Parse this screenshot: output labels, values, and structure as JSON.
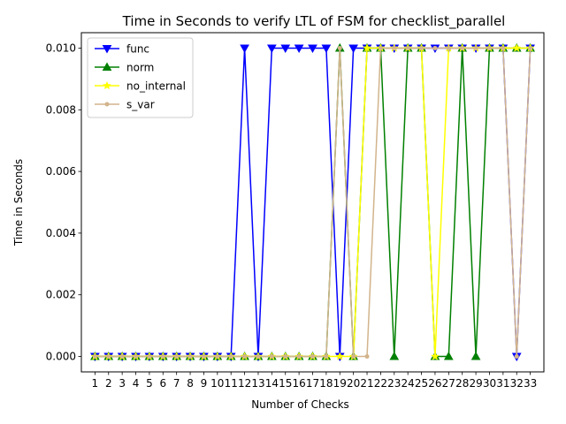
{
  "chart_data": {
    "type": "line",
    "title": "Time in Seconds to verify LTL of FSM for checklist_parallel",
    "xlabel": "Number of Checks",
    "ylabel": "Time in Seconds",
    "x": [
      1,
      2,
      3,
      4,
      5,
      6,
      7,
      8,
      9,
      10,
      11,
      12,
      13,
      14,
      15,
      16,
      17,
      18,
      19,
      20,
      21,
      22,
      23,
      24,
      25,
      26,
      27,
      28,
      29,
      30,
      31,
      32,
      33
    ],
    "xlim": [
      0,
      34
    ],
    "ylim": [
      -0.0005,
      0.0105
    ],
    "yticks": [
      0.0,
      0.002,
      0.004,
      0.006,
      0.008,
      0.01
    ],
    "ytick_labels": [
      "0.000",
      "0.002",
      "0.004",
      "0.006",
      "0.008",
      "0.010"
    ],
    "grid": false,
    "legend_position": "top-left",
    "series": [
      {
        "name": "func",
        "color": "#0000ff",
        "marker": "triangle-down",
        "values": [
          0,
          0,
          0,
          0,
          0,
          0,
          0,
          0,
          0,
          0,
          0,
          0.01,
          0,
          0.01,
          0.01,
          0.01,
          0.01,
          0.01,
          0,
          0.01,
          0.01,
          0.01,
          0.01,
          0.01,
          0.01,
          0.01,
          0.01,
          0.01,
          0.01,
          0.01,
          0.01,
          0,
          0.01
        ]
      },
      {
        "name": "norm",
        "color": "#008000",
        "marker": "triangle-up",
        "values": [
          0,
          0,
          0,
          0,
          0,
          0,
          0,
          0,
          0,
          0,
          0,
          0,
          0,
          0,
          0,
          0,
          0,
          0,
          0.01,
          0,
          0.01,
          0.01,
          0,
          0.01,
          0.01,
          0,
          0,
          0.01,
          0,
          0.01,
          0.01,
          0.01,
          0.01
        ]
      },
      {
        "name": "no_internal",
        "color": "#ffff00",
        "marker": "star",
        "values": [
          0,
          0,
          0,
          0,
          0,
          0,
          0,
          0,
          0,
          0,
          0,
          0,
          0,
          0,
          0,
          0,
          0,
          0,
          0,
          0,
          0.01,
          0.01,
          0.01,
          0.01,
          0.01,
          0,
          0.01,
          0.01,
          0.01,
          0.01,
          0.01,
          0.01,
          0.01
        ]
      },
      {
        "name": "s_var",
        "color": "#d2b48c",
        "marker": "point",
        "values": [
          0,
          0,
          0,
          0,
          0,
          0,
          0,
          0,
          0,
          0,
          0,
          0,
          0,
          0,
          0,
          0,
          0,
          0,
          0.01,
          0,
          0,
          0.01,
          0.01,
          0.01,
          0.01,
          0.01,
          0.01,
          0.01,
          0.01,
          0.01,
          0.01,
          0,
          0.01
        ]
      }
    ]
  }
}
